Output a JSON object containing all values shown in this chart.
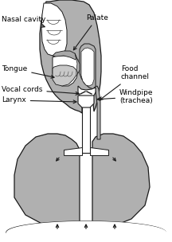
{
  "background_color": "#ffffff",
  "lung_color": "#b0b0b0",
  "head_color": "#b0b0b0",
  "outline_color": "#1a1a1a",
  "white_fill": "#ffffff",
  "figsize": [
    2.16,
    3.04
  ],
  "dpi": 100,
  "labels": {
    "nasal_cavity": "Nasal cavity",
    "palate": "Palate",
    "tongue": "Tongue",
    "vocal_cords": "Vocal cords",
    "larynx": "Larynx",
    "food_channel": "Food\nchannel",
    "windpipe": "Windpipe\n(trachea)"
  },
  "font_size": 6.5
}
